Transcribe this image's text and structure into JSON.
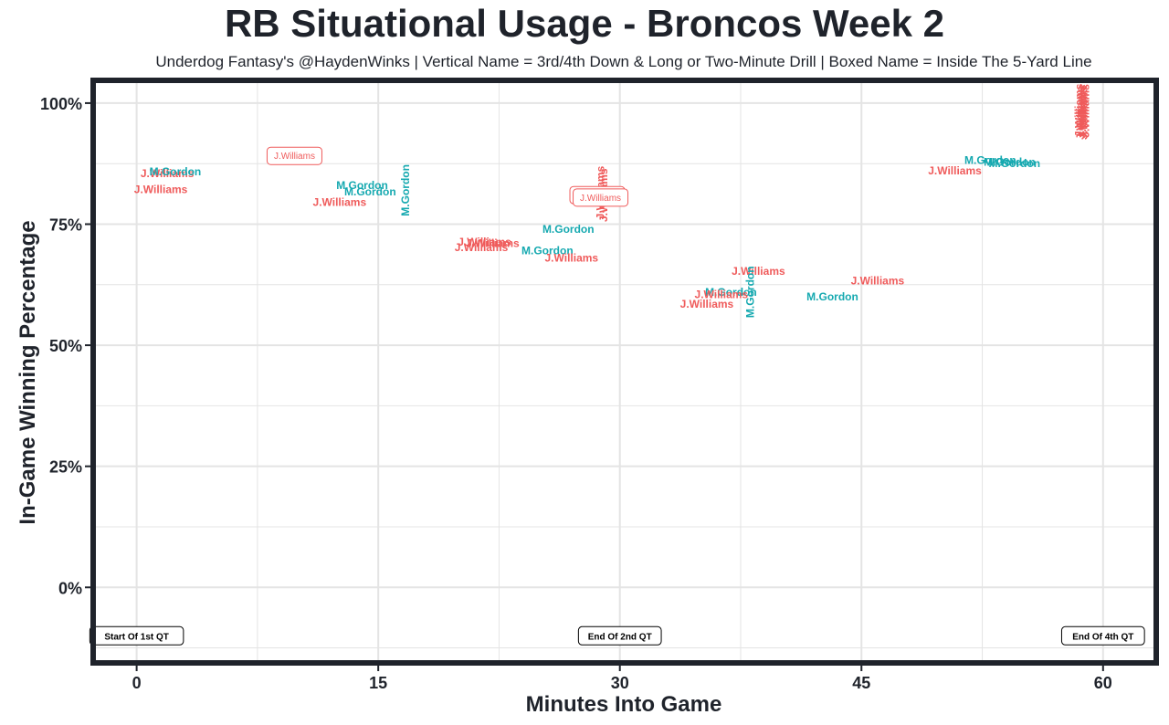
{
  "title": "RB Situational Usage - Broncos Week 2",
  "subtitle": "Underdog Fantasy's @HaydenWinks | Vertical Name = 3rd/4th Down & Long or Two-Minute Drill | Boxed Name = Inside The 5-Yard Line",
  "colors": {
    "J.Williams": "#ef5b5b",
    "M.Gordon": "#16a9b0",
    "frame": "#1f232b",
    "grid": "#e4e4e4",
    "text": "#1f232b"
  },
  "chart_data": {
    "type": "scatter",
    "title": "RB Situational Usage - Broncos Week 2",
    "xlabel": "Minutes Into Game",
    "ylabel": "In-Game Winning Percentage",
    "xlim": [
      -2.7,
      63.3
    ],
    "ylim": [
      -15.6,
      104.7
    ],
    "x_ticks": [
      0,
      15,
      30,
      45,
      60
    ],
    "x_tick_labels": [
      "0",
      "15",
      "30",
      "45",
      "60"
    ],
    "y_ticks": [
      0,
      25,
      50,
      75,
      100
    ],
    "y_tick_labels": [
      "0%",
      "25%",
      "50%",
      "75%",
      "100%"
    ],
    "grid": true,
    "legend": "none",
    "points": [
      {
        "x": 1.9,
        "y": 85.5,
        "label": "J.Williams",
        "style": "normal"
      },
      {
        "x": 2.4,
        "y": 85.8,
        "label": "M.Gordon",
        "style": "normal"
      },
      {
        "x": 1.5,
        "y": 82.2,
        "label": "J.Williams",
        "style": "normal"
      },
      {
        "x": 9.8,
        "y": 89.1,
        "label": "J.Williams",
        "style": "boxed"
      },
      {
        "x": 14.0,
        "y": 83.0,
        "label": "M.Gordon",
        "style": "normal"
      },
      {
        "x": 14.5,
        "y": 81.7,
        "label": "M.Gordon",
        "style": "normal"
      },
      {
        "x": 12.6,
        "y": 79.5,
        "label": "J.Williams",
        "style": "normal"
      },
      {
        "x": 16.7,
        "y": 82.0,
        "label": "M.Gordon",
        "style": "vertical"
      },
      {
        "x": 21.6,
        "y": 71.3,
        "label": "J.Williams",
        "style": "normal"
      },
      {
        "x": 22.1,
        "y": 71.0,
        "label": "J.Williams",
        "style": "normal"
      },
      {
        "x": 21.4,
        "y": 70.2,
        "label": "J.Williams",
        "style": "normal"
      },
      {
        "x": 26.8,
        "y": 74.0,
        "label": "M.Gordon",
        "style": "normal"
      },
      {
        "x": 25.5,
        "y": 69.5,
        "label": "M.Gordon",
        "style": "normal"
      },
      {
        "x": 27.0,
        "y": 68.0,
        "label": "J.Williams",
        "style": "normal"
      },
      {
        "x": 28.8,
        "y": 81.5,
        "label": "J.Williams",
        "style": "vertical"
      },
      {
        "x": 29.0,
        "y": 81.0,
        "label": "J.Williams",
        "style": "vertical"
      },
      {
        "x": 28.6,
        "y": 81.0,
        "label": "J.Williams",
        "style": "boxed"
      },
      {
        "x": 28.8,
        "y": 80.5,
        "label": "J.Williams",
        "style": "boxed"
      },
      {
        "x": 38.6,
        "y": 65.3,
        "label": "J.Williams",
        "style": "normal"
      },
      {
        "x": 46.0,
        "y": 63.3,
        "label": "J.Williams",
        "style": "normal"
      },
      {
        "x": 36.9,
        "y": 61.0,
        "label": "M.Gordon",
        "style": "normal"
      },
      {
        "x": 36.3,
        "y": 60.5,
        "label": "J.Williams",
        "style": "normal"
      },
      {
        "x": 35.4,
        "y": 58.5,
        "label": "J.Williams",
        "style": "normal"
      },
      {
        "x": 38.1,
        "y": 61.0,
        "label": "M.Gordon",
        "style": "vertical"
      },
      {
        "x": 43.2,
        "y": 60.0,
        "label": "M.Gordon",
        "style": "normal"
      },
      {
        "x": 50.8,
        "y": 86.0,
        "label": "J.Williams",
        "style": "normal"
      },
      {
        "x": 53.0,
        "y": 88.2,
        "label": "M.Gordon",
        "style": "normal"
      },
      {
        "x": 54.5,
        "y": 87.5,
        "label": "M.Gordon",
        "style": "normal"
      },
      {
        "x": 54.2,
        "y": 87.8,
        "label": "M.Gordon",
        "style": "normal"
      },
      {
        "x": 58.5,
        "y": 98.5,
        "label": "J.Williams",
        "style": "vertical"
      },
      {
        "x": 58.6,
        "y": 98.0,
        "label": "J.Williams",
        "style": "vertical"
      },
      {
        "x": 58.7,
        "y": 98.3,
        "label": "J.Williams",
        "style": "vertical"
      },
      {
        "x": 58.8,
        "y": 98.0,
        "label": "J.Williams",
        "style": "vertical"
      },
      {
        "x": 58.9,
        "y": 98.4,
        "label": "J.Williams",
        "style": "vertical"
      }
    ],
    "annotations": [
      {
        "x": 0,
        "y": -10,
        "text": "Start Of 1st QT"
      },
      {
        "x": 30,
        "y": -10,
        "text": "End Of 2nd QT"
      },
      {
        "x": 60,
        "y": -10,
        "text": "End Of 4th QT"
      }
    ]
  }
}
